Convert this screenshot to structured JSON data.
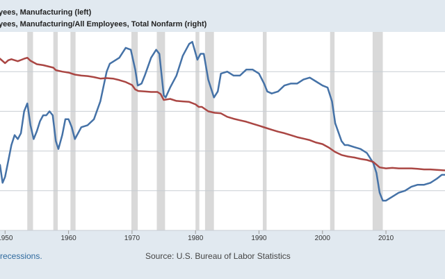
{
  "legend": {
    "line1": "yees, Manufacturing (left)",
    "line2": "yees, Manufacturing/All Employees, Total Nonfarm (right)"
  },
  "footer": {
    "note": "recessions.",
    "source": "Source: U.S. Bureau of Labor Statistics"
  },
  "chart_data": {
    "type": "line",
    "x_tick_labels": [
      "1950",
      "1960",
      "1970",
      "1980",
      "1990",
      "2000",
      "2010"
    ],
    "x_ticks": [
      1950,
      1960,
      1970,
      1980,
      1990,
      2000,
      2010
    ],
    "xlim": [
      1949.2,
      2019.3
    ],
    "grid": true,
    "recessions": [
      [
        1953.5,
        1954.4
      ],
      [
        1957.6,
        1958.3
      ],
      [
        1960.3,
        1961.1
      ],
      [
        1969.9,
        1970.9
      ],
      [
        1973.9,
        1975.2
      ],
      [
        1980.0,
        1980.6
      ],
      [
        1981.5,
        1982.9
      ],
      [
        1990.6,
        1991.2
      ],
      [
        2001.2,
        2001.9
      ],
      [
        2007.9,
        2009.5
      ]
    ],
    "series": [
      {
        "color": "#4572a7",
        "axis": "left",
        "ylim": [
          10,
          20
        ],
        "points": [
          [
            1949.2,
            13.3
          ],
          [
            1949.6,
            12.4
          ],
          [
            1950,
            12.7
          ],
          [
            1950.5,
            13.5
          ],
          [
            1951,
            14.3
          ],
          [
            1951.5,
            14.8
          ],
          [
            1952,
            14.6
          ],
          [
            1952.5,
            14.9
          ],
          [
            1953,
            16
          ],
          [
            1953.5,
            16.4
          ],
          [
            1954,
            15.3
          ],
          [
            1954.5,
            14.6
          ],
          [
            1955,
            15
          ],
          [
            1955.5,
            15.5
          ],
          [
            1956,
            15.8
          ],
          [
            1956.5,
            15.8
          ],
          [
            1957,
            16
          ],
          [
            1957.5,
            15.8
          ],
          [
            1958,
            14.5
          ],
          [
            1958.4,
            14.1
          ],
          [
            1959,
            14.8
          ],
          [
            1959.5,
            15.6
          ],
          [
            1960,
            15.6
          ],
          [
            1960.5,
            15.2
          ],
          [
            1961,
            14.6
          ],
          [
            1961.5,
            14.9
          ],
          [
            1962,
            15.2
          ],
          [
            1963,
            15.3
          ],
          [
            1964,
            15.6
          ],
          [
            1965,
            16.5
          ],
          [
            1966,
            18
          ],
          [
            1966.5,
            18.4
          ],
          [
            1967,
            18.5
          ],
          [
            1968,
            18.7
          ],
          [
            1969,
            19.2
          ],
          [
            1969.8,
            19.1
          ],
          [
            1970.5,
            18.1
          ],
          [
            1970.9,
            17.3
          ],
          [
            1971.5,
            17.4
          ],
          [
            1972,
            17.8
          ],
          [
            1973,
            18.7
          ],
          [
            1973.8,
            19.1
          ],
          [
            1974.3,
            18.9
          ],
          [
            1975,
            16.8
          ],
          [
            1975.3,
            16.7
          ],
          [
            1976,
            17.2
          ],
          [
            1977,
            17.8
          ],
          [
            1978,
            18.8
          ],
          [
            1979,
            19.4
          ],
          [
            1979.5,
            19.5
          ],
          [
            1980.3,
            18.6
          ],
          [
            1980.8,
            18.9
          ],
          [
            1981.3,
            18.9
          ],
          [
            1982,
            17.6
          ],
          [
            1982.9,
            16.7
          ],
          [
            1983.5,
            17
          ],
          [
            1984,
            17.9
          ],
          [
            1985,
            18
          ],
          [
            1986,
            17.8
          ],
          [
            1987,
            17.8
          ],
          [
            1988,
            18.1
          ],
          [
            1989,
            18.1
          ],
          [
            1990,
            17.9
          ],
          [
            1990.8,
            17.4
          ],
          [
            1991.3,
            17
          ],
          [
            1992,
            16.9
          ],
          [
            1993,
            17
          ],
          [
            1994,
            17.3
          ],
          [
            1995,
            17.4
          ],
          [
            1996,
            17.4
          ],
          [
            1997,
            17.6
          ],
          [
            1998,
            17.7
          ],
          [
            1999,
            17.5
          ],
          [
            2000,
            17.3
          ],
          [
            2000.8,
            17.2
          ],
          [
            2001.5,
            16.5
          ],
          [
            2002,
            15.4
          ],
          [
            2003,
            14.5
          ],
          [
            2003.5,
            14.3
          ],
          [
            2004,
            14.3
          ],
          [
            2005,
            14.2
          ],
          [
            2006,
            14.1
          ],
          [
            2007,
            13.9
          ],
          [
            2008,
            13.4
          ],
          [
            2008.5,
            12.9
          ],
          [
            2009,
            11.9
          ],
          [
            2009.5,
            11.5
          ],
          [
            2010,
            11.5
          ],
          [
            2011,
            11.7
          ],
          [
            2012,
            11.9
          ],
          [
            2013,
            12
          ],
          [
            2014,
            12.2
          ],
          [
            2015,
            12.3
          ],
          [
            2016,
            12.3
          ],
          [
            2017,
            12.4
          ],
          [
            2017.5,
            12.5
          ],
          [
            2018,
            12.6
          ],
          [
            2018.8,
            12.8
          ],
          [
            2019.3,
            12.8
          ]
        ]
      },
      {
        "color": "#aa4643",
        "axis": "right",
        "ylim": [
          0,
          40
        ],
        "points": [
          [
            1949.2,
            34.6
          ],
          [
            1950,
            33.7
          ],
          [
            1950.5,
            34.3
          ],
          [
            1951,
            34.5
          ],
          [
            1952,
            34.1
          ],
          [
            1953,
            34.6
          ],
          [
            1953.5,
            34.8
          ],
          [
            1954,
            34.2
          ],
          [
            1955,
            33.5
          ],
          [
            1956,
            33.3
          ],
          [
            1957,
            33
          ],
          [
            1957.6,
            32.8
          ],
          [
            1958,
            32.3
          ],
          [
            1959,
            32
          ],
          [
            1960,
            31.8
          ],
          [
            1961,
            31.4
          ],
          [
            1962,
            31.2
          ],
          [
            1963,
            31.1
          ],
          [
            1964,
            30.9
          ],
          [
            1965,
            30.6
          ],
          [
            1966,
            30.7
          ],
          [
            1967,
            30.6
          ],
          [
            1968,
            30.3
          ],
          [
            1969,
            29.9
          ],
          [
            1970,
            29.3
          ],
          [
            1970.5,
            28.4
          ],
          [
            1971,
            28.1
          ],
          [
            1972,
            28
          ],
          [
            1973,
            27.9
          ],
          [
            1974,
            27.9
          ],
          [
            1974.5,
            27.5
          ],
          [
            1975,
            26.3
          ],
          [
            1976,
            26.5
          ],
          [
            1977,
            26.1
          ],
          [
            1978,
            26
          ],
          [
            1979,
            25.9
          ],
          [
            1980,
            25.4
          ],
          [
            1980.5,
            24.9
          ],
          [
            1981,
            24.9
          ],
          [
            1982,
            24
          ],
          [
            1983,
            23.7
          ],
          [
            1984,
            23.6
          ],
          [
            1985,
            22.9
          ],
          [
            1986,
            22.5
          ],
          [
            1987,
            22.2
          ],
          [
            1988,
            21.9
          ],
          [
            1989,
            21.5
          ],
          [
            1990,
            21.1
          ],
          [
            1991,
            20.7
          ],
          [
            1992,
            20.3
          ],
          [
            1993,
            19.9
          ],
          [
            1994,
            19.6
          ],
          [
            1995,
            19.2
          ],
          [
            1996,
            18.8
          ],
          [
            1997,
            18.5
          ],
          [
            1998,
            18.2
          ],
          [
            1999,
            17.7
          ],
          [
            2000,
            17.4
          ],
          [
            2001,
            16.7
          ],
          [
            2002,
            15.8
          ],
          [
            2003,
            15.2
          ],
          [
            2004,
            14.9
          ],
          [
            2005,
            14.7
          ],
          [
            2006,
            14.4
          ],
          [
            2007,
            14.2
          ],
          [
            2008,
            13.8
          ],
          [
            2009,
            12.7
          ],
          [
            2010,
            12.5
          ],
          [
            2011,
            12.6
          ],
          [
            2012,
            12.5
          ],
          [
            2013,
            12.5
          ],
          [
            2014,
            12.5
          ],
          [
            2015,
            12.4
          ],
          [
            2016,
            12.3
          ],
          [
            2017,
            12.3
          ],
          [
            2018,
            12.2
          ],
          [
            2019.3,
            12.1
          ]
        ]
      }
    ]
  }
}
